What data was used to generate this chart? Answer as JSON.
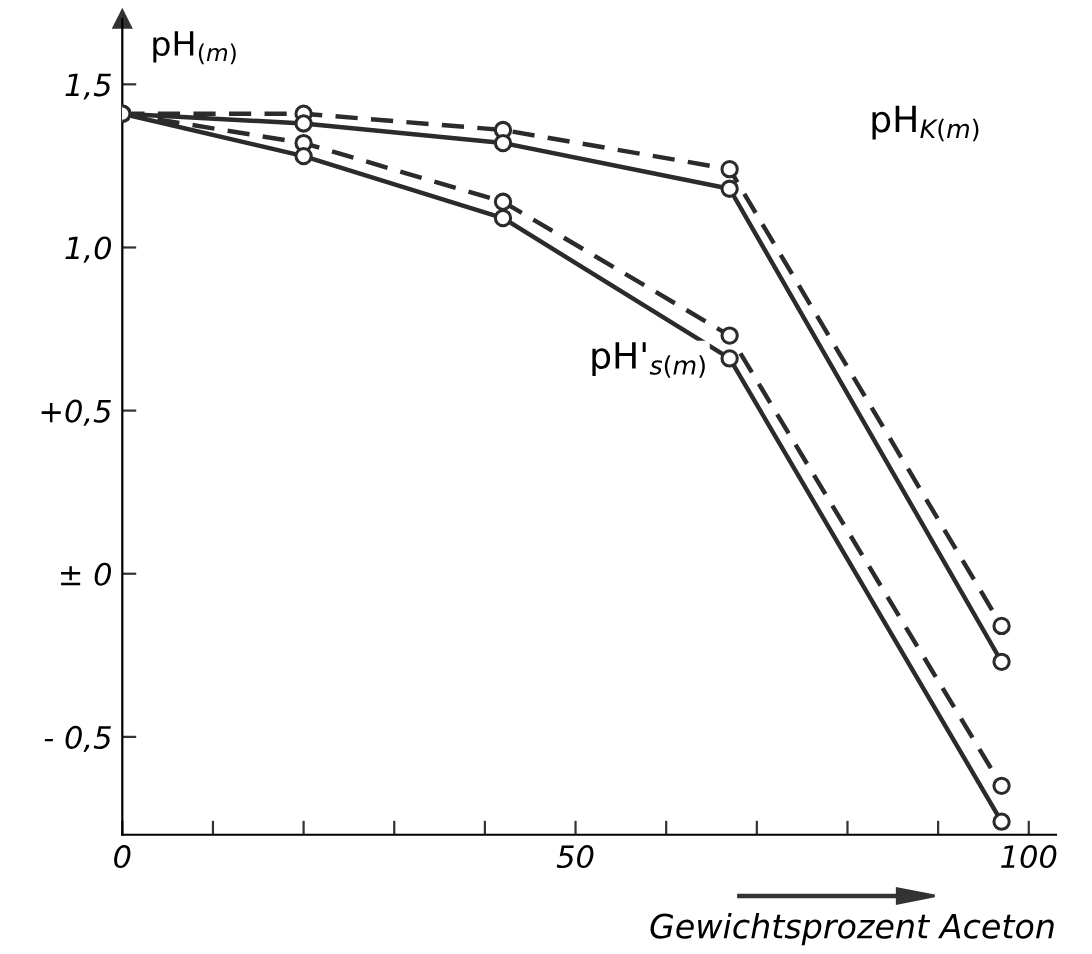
{
  "chart_data": {
    "type": "line",
    "ylabel": "pH$_{(m)}$",
    "xlabel": "Gewichtsprozent Aceton",
    "x": [
      0,
      20,
      42,
      67,
      97
    ],
    "series": [
      {
        "color": "#2b2b2b",
        "line_style": "dashed",
        "values": [
          1.41,
          1.41,
          1.36,
          1.24,
          -0.16
        ]
      },
      {
        "color": "#2b2b2b",
        "line_style": "solid",
        "values": [
          1.41,
          1.38,
          1.32,
          1.18,
          -0.27
        ]
      },
      {
        "color": "#2b2b2b",
        "line_style": "dashed",
        "values": [
          1.41,
          1.32,
          1.14,
          0.73,
          -0.65
        ]
      },
      {
        "color": "#2b2b2b",
        "line_style": "solid",
        "values": [
          1.41,
          1.28,
          1.09,
          0.66,
          -0.76
        ]
      }
    ],
    "marker": "circle",
    "grid": false,
    "legend": false,
    "xlim": [
      0,
      103
    ],
    "ylim": [
      -0.8,
      1.7
    ],
    "xticks": [
      0,
      {
        "value": 10,
        "label": null
      },
      {
        "value": 20,
        "label": null
      },
      {
        "value": 30,
        "label": null
      },
      {
        "value": 40,
        "label": null
      },
      50,
      {
        "value": 60,
        "label": null
      },
      {
        "value": 70,
        "label": null
      },
      {
        "value": 80,
        "label": null
      },
      {
        "value": 90,
        "label": null
      },
      100
    ],
    "yticks": [
      {
        "value": -0.5,
        "label": "- 0,5"
      },
      {
        "value": 0,
        "label": "± 0"
      },
      {
        "value": 0.5,
        "label": "+0,5"
      },
      {
        "value": 1.0,
        "label": "1,0"
      },
      {
        "value": 1.5,
        "label": "1,5"
      }
    ],
    "annotations": [
      "pH$_{K(m)}$",
      "pH'$_{s(m)}$"
    ]
  }
}
